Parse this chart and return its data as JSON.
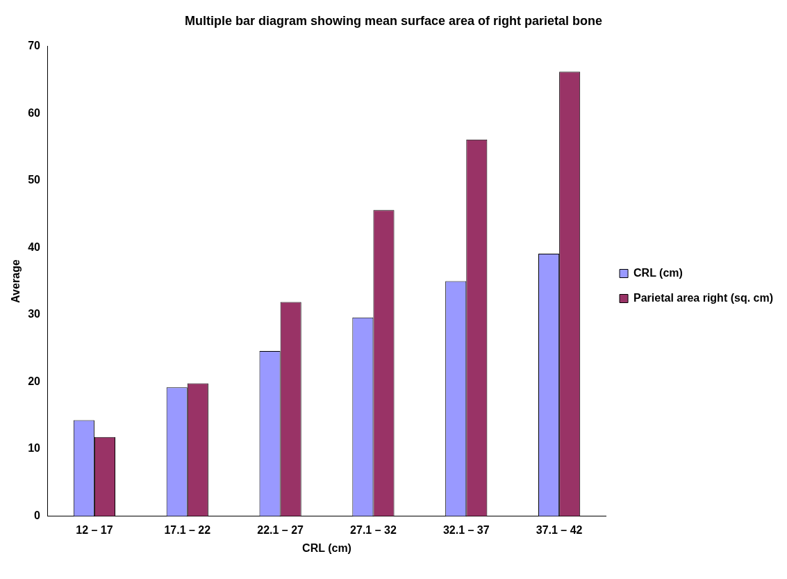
{
  "chart_data": {
    "type": "bar",
    "title": "Multiple bar diagram showing mean surface area of right parietal bone",
    "xlabel": "CRL (cm)",
    "ylabel": "Average",
    "categories": [
      "12 – 17",
      "17.1 – 22",
      "22.1 – 27",
      "27.1 – 32",
      "32.1 – 37",
      "37.1 – 42"
    ],
    "series": [
      {
        "name": "CRL (cm)",
        "color": "#9999ff",
        "values": [
          14.3,
          19.2,
          24.6,
          29.6,
          35.0,
          39.1
        ]
      },
      {
        "name": "Parietal area right (sq. cm)",
        "color": "#993366",
        "values": [
          11.8,
          19.8,
          31.9,
          45.6,
          56.1,
          66.2
        ]
      }
    ],
    "ylim": [
      0,
      70
    ],
    "yticks": [
      0,
      10,
      20,
      30,
      40,
      50,
      60,
      70
    ],
    "grid": false,
    "legend": "right"
  }
}
